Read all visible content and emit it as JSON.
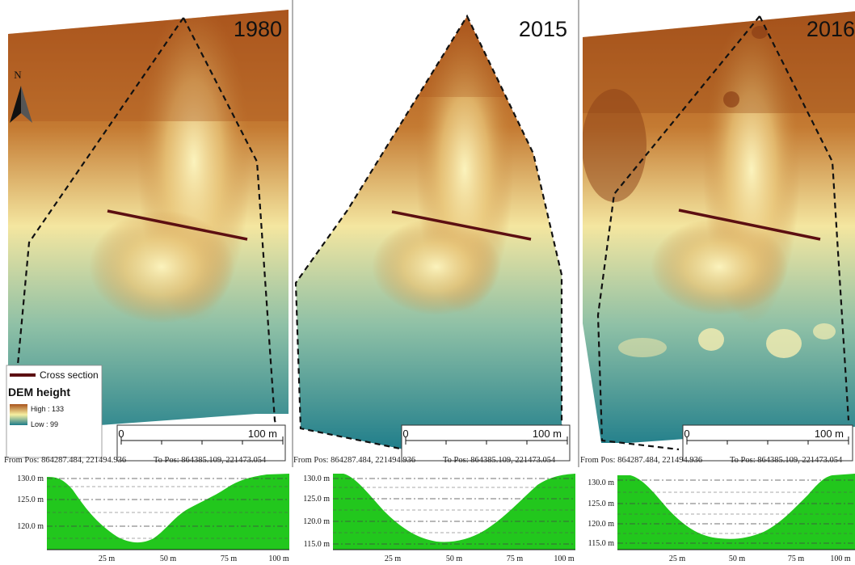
{
  "panels": [
    {
      "year": "1980",
      "scalebar": {
        "start": "0",
        "end": "100 m"
      },
      "from_pos": "From Pos: 864287.484, 221494.936",
      "to_pos": "To Pos: 864385.109, 221473.054",
      "profile": {
        "y_ticks": [
          "130.0 m",
          "125.0 m",
          "120.0 m"
        ],
        "x_ticks": [
          "25 m",
          "50 m",
          "75 m",
          "100 m"
        ]
      }
    },
    {
      "year": "2015",
      "scalebar": {
        "start": "0",
        "end": "100 m"
      },
      "from_pos": "From Pos: 864287.484, 221494.936",
      "to_pos": "To Pos: 864385.109, 221473.054",
      "profile": {
        "y_ticks": [
          "130.0 m",
          "125.0 m",
          "120.0 m",
          "115.0 m"
        ],
        "x_ticks": [
          "25 m",
          "50 m",
          "75 m",
          "100 m"
        ]
      }
    },
    {
      "year": "2016",
      "scalebar": {
        "start": "0",
        "end": "100 m"
      },
      "from_pos": "From Pos: 864287.484, 221494.936",
      "to_pos": "To Pos: 864385.109, 221473.054",
      "profile": {
        "y_ticks": [
          "130.0 m",
          "125.0 m",
          "120.0 m",
          "115.0 m"
        ],
        "x_ticks": [
          "25 m",
          "50 m",
          "75 m",
          "100 m"
        ]
      }
    }
  ],
  "north_label": "N",
  "legend": {
    "cross_section": "Cross section",
    "title": "DEM height",
    "high": "High : 133",
    "low": "Low : 99"
  },
  "colors": {
    "cross_section": "#5c0f12",
    "profile_fill": "#22c71d",
    "dem_high": "#a9531c",
    "dem_mid": "#f7f0a2",
    "dem_low": "#1d7c8a"
  }
}
